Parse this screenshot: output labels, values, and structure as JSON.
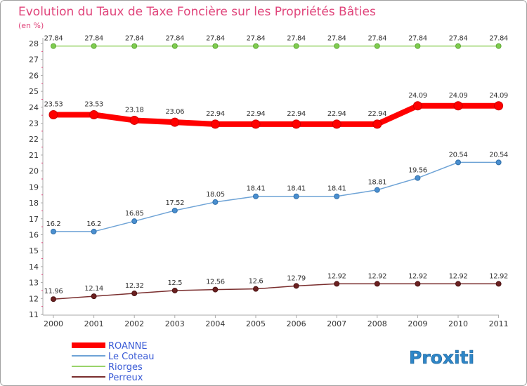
{
  "chart_data": {
    "type": "line",
    "title": "Evolution du Taux de Taxe Foncière sur les Propriétés Bâties",
    "unit_label": "(en %)",
    "x": [
      "2000",
      "2001",
      "2002",
      "2003",
      "2004",
      "2005",
      "2006",
      "2007",
      "2008",
      "2009",
      "2010",
      "2011"
    ],
    "ylim": [
      11,
      28
    ],
    "yticks": [
      11,
      12,
      13,
      14,
      15,
      16,
      17,
      18,
      19,
      20,
      21,
      22,
      23,
      24,
      25,
      26,
      27,
      28
    ],
    "grid": false,
    "legend_position": "bottom-left",
    "series": [
      {
        "name": "ROANNE",
        "color": "#ff0000",
        "values": [
          23.53,
          23.53,
          23.18,
          23.06,
          22.94,
          22.94,
          22.94,
          22.94,
          22.94,
          24.09,
          24.09,
          24.09
        ],
        "labels": [
          "23.53",
          "23.53",
          "23.18",
          "23.06",
          "22.94",
          "22.94",
          "22.94",
          "22.94",
          "22.94",
          "24.09",
          "24.09",
          "24.09"
        ]
      },
      {
        "name": "Le Coteau",
        "color": "#6ea3d6",
        "values": [
          16.2,
          16.2,
          16.85,
          17.52,
          18.05,
          18.41,
          18.41,
          18.41,
          18.81,
          19.56,
          20.54,
          20.54
        ],
        "labels": [
          "16.2",
          "16.2",
          "16.85",
          "17.52",
          "18.05",
          "18.41",
          "18.41",
          "18.41",
          "18.81",
          "19.56",
          "20.54",
          "20.54"
        ]
      },
      {
        "name": "Riorges",
        "color": "#99d36a",
        "values": [
          27.84,
          27.84,
          27.84,
          27.84,
          27.84,
          27.84,
          27.84,
          27.84,
          27.84,
          27.84,
          27.84,
          27.84
        ],
        "labels": [
          "27.84",
          "27.84",
          "27.84",
          "27.84",
          "27.84",
          "27.84",
          "27.84",
          "27.84",
          "27.84",
          "27.84",
          "27.84",
          "27.84"
        ]
      },
      {
        "name": "Perreux",
        "color": "#7a2e2e",
        "values": [
          11.96,
          12.14,
          12.32,
          12.5,
          12.56,
          12.6,
          12.79,
          12.92,
          12.92,
          12.92,
          12.92,
          12.92
        ],
        "labels": [
          "11.96",
          "12.14",
          "12.32",
          "12.5",
          "12.56",
          "12.6",
          "12.79",
          "12.92",
          "12.92",
          "12.92",
          "12.92",
          "12.92"
        ]
      }
    ]
  },
  "logo": {
    "text": "Proxiti"
  },
  "colors": {
    "axis": "#aaaaaa",
    "title": "#e0457b",
    "frame": "#a0a0a0"
  }
}
